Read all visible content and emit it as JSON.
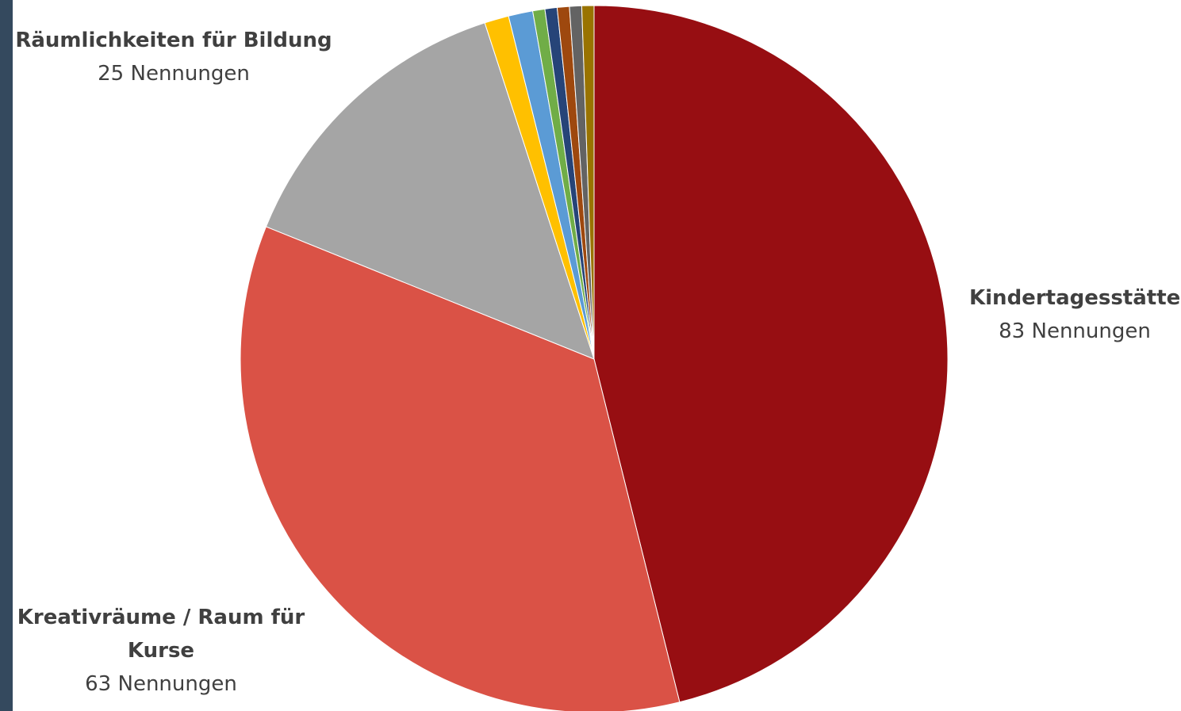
{
  "colors": {
    "left_edge": "#34495e",
    "label_text": "#404040"
  },
  "chart_data": {
    "type": "pie",
    "start_angle_deg": 0,
    "direction": "clockwise",
    "slices": [
      {
        "label": "Kindertagesstätte",
        "value": 83,
        "unit": "Nennungen",
        "color": "#970e12",
        "show_label": true
      },
      {
        "label": "Kreativräume / Raum für Kurse",
        "value": 63,
        "unit": "Nennungen",
        "color": "#da5246",
        "show_label": true
      },
      {
        "label": "Räumlichkeiten für Bildung",
        "value": 25,
        "unit": "Nennungen",
        "color": "#a5a5a5",
        "show_label": true
      },
      {
        "label": "",
        "value": 2,
        "color": "#ffc000",
        "show_label": false
      },
      {
        "label": "",
        "value": 2,
        "color": "#5b9bd5",
        "show_label": false
      },
      {
        "label": "",
        "value": 1,
        "color": "#70ad47",
        "show_label": false
      },
      {
        "label": "",
        "value": 1,
        "color": "#264478",
        "show_label": false
      },
      {
        "label": "",
        "value": 1,
        "color": "#9e480e",
        "show_label": false
      },
      {
        "label": "",
        "value": 1,
        "color": "#636363",
        "show_label": false
      },
      {
        "label": "",
        "value": 1,
        "color": "#997300",
        "show_label": false
      }
    ]
  }
}
